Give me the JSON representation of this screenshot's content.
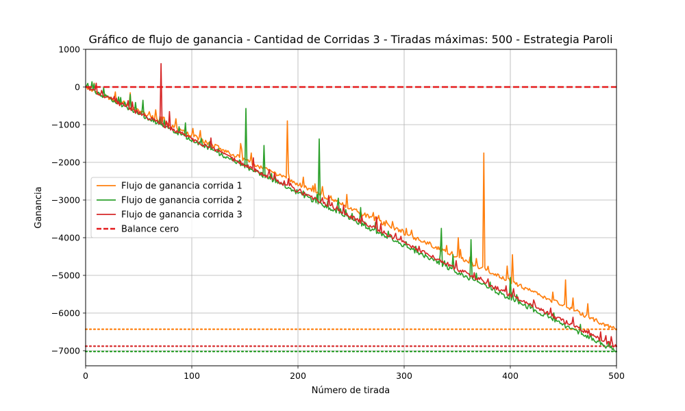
{
  "chart_data": {
    "type": "line",
    "title": "Gráfico de flujo de ganancia - Cantidad de Corridas 3 - Tiradas máximas: 500 - Estrategia Paroli",
    "xlabel": "Número de tirada",
    "ylabel": "Ganancia",
    "xlim": [
      0,
      500
    ],
    "ylim": [
      -7400,
      1000
    ],
    "xticks": [
      0,
      100,
      200,
      300,
      400,
      500
    ],
    "yticks": [
      1000,
      0,
      -1000,
      -2000,
      -3000,
      -4000,
      -5000,
      -6000,
      -7000
    ],
    "grid": true,
    "legend_position": "center-left",
    "series": [
      {
        "name": "Flujo de ganancia corrida 1",
        "color": "#ff7f0e",
        "style": "solid",
        "start": 0,
        "end": -6450,
        "spikes": [
          [
            8,
            100
          ],
          [
            42,
            -150
          ],
          [
            73,
            -800
          ],
          [
            101,
            -1100
          ],
          [
            146,
            -1500
          ],
          [
            190,
            -900
          ],
          [
            246,
            -2850
          ],
          [
            302,
            -3750
          ],
          [
            307,
            -3800
          ],
          [
            351,
            -4000
          ],
          [
            368,
            -4550
          ],
          [
            375,
            -1750
          ],
          [
            397,
            -4750
          ],
          [
            402,
            -4450
          ],
          [
            432,
            -5550
          ],
          [
            452,
            -5120
          ],
          [
            459,
            -5600
          ],
          [
            473,
            -5750
          ]
        ]
      },
      {
        "name": "Flujo de ganancia corrida 2",
        "color": "#2ca02c",
        "style": "solid",
        "start": 0,
        "end": -7020,
        "spikes": [
          [
            8,
            80
          ],
          [
            21,
            -250
          ],
          [
            42,
            -200
          ],
          [
            54,
            -350
          ],
          [
            94,
            -950
          ],
          [
            151,
            -570
          ],
          [
            168,
            -1550
          ],
          [
            187,
            -2500
          ],
          [
            220,
            -1380
          ],
          [
            238,
            -2950
          ],
          [
            259,
            -3200
          ],
          [
            335,
            -3750
          ],
          [
            346,
            -4450
          ],
          [
            363,
            -4050
          ],
          [
            400,
            -5050
          ],
          [
            466,
            -6300
          ]
        ]
      },
      {
        "name": "Flujo de ganancia corrida 3",
        "color": "#d62728",
        "style": "solid",
        "start": 0,
        "end": -6900,
        "spikes": [
          [
            71,
            620
          ],
          [
            79,
            -650
          ],
          [
            118,
            -1350
          ],
          [
            158,
            -1880
          ],
          [
            229,
            -2880
          ],
          [
            274,
            -3450
          ],
          [
            340,
            -4700
          ],
          [
            422,
            -5650
          ],
          [
            453,
            -6200
          ],
          [
            474,
            -6450
          ]
        ]
      },
      {
        "name": "Balance cero",
        "color": "#e41a1c",
        "style": "dashed",
        "values": [
          [
            0,
            0
          ],
          [
            500,
            0
          ]
        ]
      }
    ],
    "reference_lines": [
      {
        "y": -6430,
        "color": "#ff7f0e",
        "style": "dotted"
      },
      {
        "y": -6880,
        "color": "#d62728",
        "style": "dotted"
      },
      {
        "y": -7020,
        "color": "#2ca02c",
        "style": "dotted"
      }
    ]
  }
}
